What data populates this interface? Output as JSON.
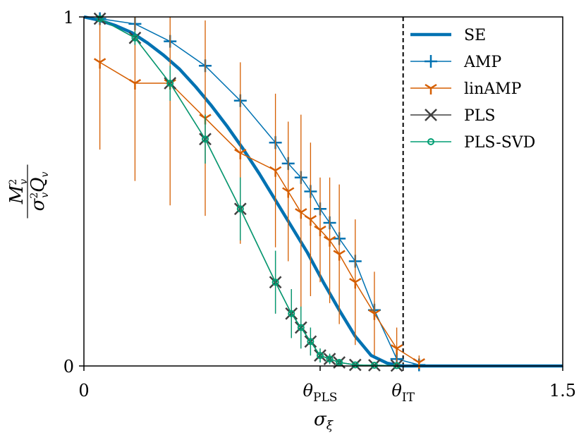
{
  "chart_data": {
    "type": "line",
    "title": "",
    "xlabel": "σ",
    "xlabel_sub": "ξ",
    "ylabel": "M²_v / (σ²_v Q_v)",
    "ylabel_num": "M",
    "ylabel_num_sub": "v",
    "ylabel_num_sup": "2",
    "ylabel_den": "σ",
    "ylabel_den_sub": "v",
    "ylabel_den_sup": "2",
    "ylabel_den_tail": "Q",
    "ylabel_den_tail_sub": "v",
    "xlim": [
      0,
      1.5
    ],
    "ylim": [
      0,
      1
    ],
    "x_ticks": [
      {
        "value": 0,
        "label": "0"
      },
      {
        "value": 0.74,
        "label": "θ",
        "sub": "PLS"
      },
      {
        "value": 1.0,
        "label": "θ",
        "sub": "IT"
      },
      {
        "value": 1.5,
        "label": "1.5"
      }
    ],
    "y_ticks": [
      {
        "value": 0,
        "label": "0"
      },
      {
        "value": 1,
        "label": "1"
      }
    ],
    "vline": {
      "x": 1.0,
      "style": "dashed"
    },
    "legend_position": "top-right",
    "series": [
      {
        "name": "SE",
        "color": "#0072b2",
        "marker": "none",
        "x": [
          0,
          0.05,
          0.1,
          0.15,
          0.2,
          0.25,
          0.3,
          0.35,
          0.4,
          0.45,
          0.5,
          0.55,
          0.6,
          0.65,
          0.7,
          0.75,
          0.8,
          0.85,
          0.9,
          0.95,
          0.99,
          1.0,
          1.05,
          1.1,
          1.2,
          1.3,
          1.4,
          1.5
        ],
        "values": [
          1.0,
          0.99,
          0.975,
          0.955,
          0.925,
          0.89,
          0.85,
          0.8,
          0.745,
          0.685,
          0.62,
          0.55,
          0.475,
          0.4,
          0.325,
          0.24,
          0.16,
          0.085,
          0.03,
          0.008,
          0.001,
          0.0,
          0.0,
          0.0,
          0.0,
          0.0,
          0.0,
          0.0
        ]
      },
      {
        "name": "AMP",
        "color": "#0072b2",
        "marker": "plus",
        "x": [
          0.05,
          0.16,
          0.27,
          0.38,
          0.49,
          0.6,
          0.64,
          0.68,
          0.71,
          0.74,
          0.77,
          0.8,
          0.85,
          0.91,
          0.98,
          1.05
        ],
        "values": [
          0.995,
          0.98,
          0.93,
          0.86,
          0.76,
          0.64,
          0.58,
          0.54,
          0.5,
          0.45,
          0.41,
          0.365,
          0.3,
          0.16,
          0.02,
          0.003
        ],
        "err": [
          0.015,
          0.015,
          0.015,
          0.015,
          0.015,
          0.02,
          0.02,
          0.02,
          0.02,
          0.02,
          0.02,
          0.02,
          0.02,
          0.025,
          0.02,
          0.01
        ]
      },
      {
        "name": "linAMP",
        "color": "#d55e00",
        "marker": "tri",
        "x": [
          0.05,
          0.16,
          0.27,
          0.38,
          0.49,
          0.6,
          0.64,
          0.68,
          0.71,
          0.74,
          0.77,
          0.8,
          0.85,
          0.91,
          0.98,
          1.05
        ],
        "values": [
          0.87,
          0.81,
          0.81,
          0.71,
          0.61,
          0.56,
          0.5,
          0.44,
          0.42,
          0.39,
          0.36,
          0.32,
          0.24,
          0.15,
          0.05,
          0.01
        ],
        "err": [
          0.25,
          0.28,
          0.35,
          0.28,
          0.26,
          0.22,
          0.2,
          0.28,
          0.22,
          0.15,
          0.18,
          0.2,
          0.18,
          0.12,
          0.06,
          0.02
        ]
      },
      {
        "name": "PLS",
        "color": "#404040",
        "marker": "x",
        "x": [
          0.05,
          0.16,
          0.27,
          0.38,
          0.49,
          0.6,
          0.65,
          0.68,
          0.71,
          0.74,
          0.77,
          0.8,
          0.85,
          0.91,
          0.98
        ],
        "values": [
          0.995,
          0.94,
          0.81,
          0.65,
          0.45,
          0.24,
          0.15,
          0.11,
          0.07,
          0.03,
          0.02,
          0.01,
          0.003,
          0.002,
          0.001
        ],
        "err": [
          0.01,
          0.02,
          0.05,
          0.07,
          0.09,
          0.09,
          0.07,
          0.06,
          0.04,
          0.02,
          0.015,
          0.008,
          0.004,
          0.003,
          0.002
        ]
      },
      {
        "name": "PLS-SVD",
        "color": "#009e73",
        "marker": "circle",
        "x": [
          0.05,
          0.16,
          0.27,
          0.38,
          0.49,
          0.6,
          0.65,
          0.68,
          0.71,
          0.74,
          0.77,
          0.8,
          0.85,
          0.91,
          0.98
        ],
        "values": [
          0.995,
          0.94,
          0.81,
          0.65,
          0.45,
          0.24,
          0.15,
          0.11,
          0.07,
          0.03,
          0.02,
          0.01,
          0.003,
          0.002,
          0.001
        ],
        "err": [
          0.01,
          0.02,
          0.05,
          0.07,
          0.09,
          0.09,
          0.07,
          0.06,
          0.04,
          0.02,
          0.015,
          0.008,
          0.004,
          0.003,
          0.002
        ]
      }
    ]
  }
}
